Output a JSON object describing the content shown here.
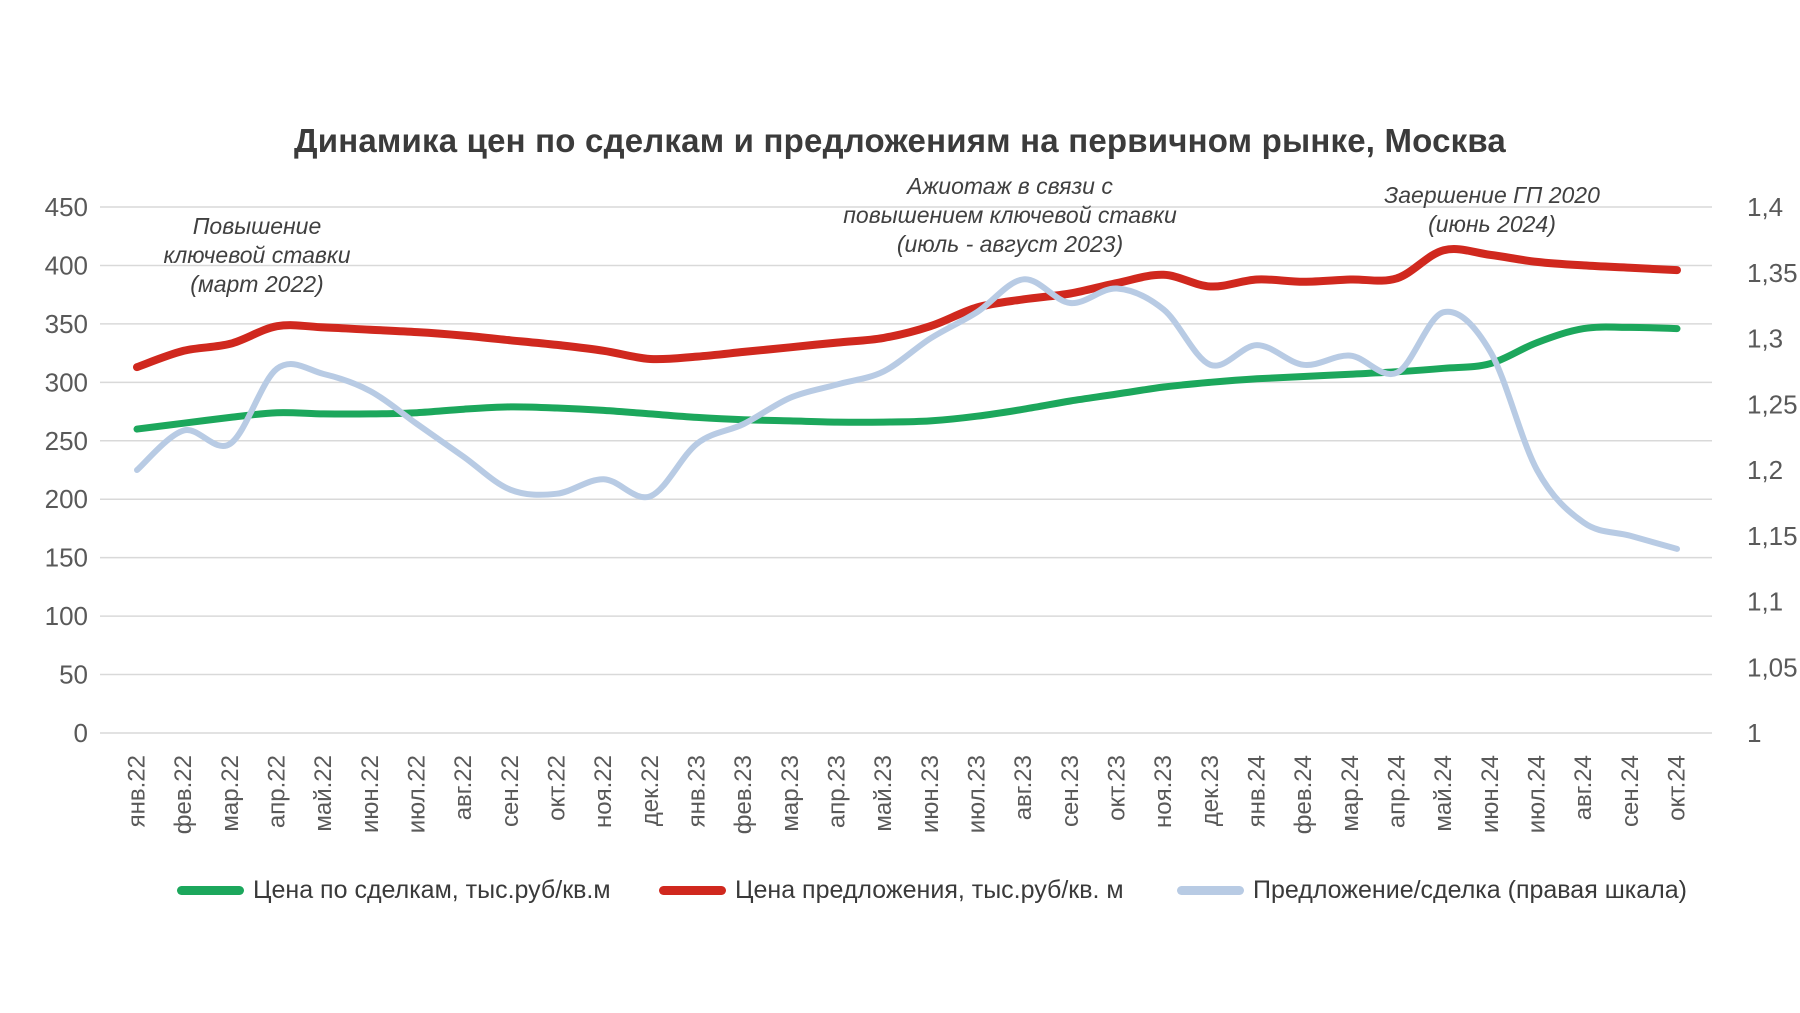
{
  "title": "Динамика цен по сделкам и предложениям на первичном рынке, Москва",
  "annotations": [
    {
      "lines": [
        "Повышение",
        "ключевой ставки",
        "(март 2022)"
      ]
    },
    {
      "lines": [
        "Ажиотаж в связи с",
        "повышением ключевой ставки",
        "(июль - август 2023)"
      ]
    },
    {
      "lines": [
        "Заершение ГП 2020",
        "(июнь 2024)"
      ]
    }
  ],
  "colors": {
    "deals_line": "#1ca75c",
    "offer_line": "#d0281e",
    "ratio_line": "#b8cbe4",
    "gridline": "#d9d9d9",
    "axis_text": "#595959",
    "title_text": "#3b3b3b"
  },
  "chart_data": {
    "type": "line",
    "title": "Динамика цен по сделкам и предложениям на первичном рынке, Москва",
    "grid": true,
    "legend_position": "bottom",
    "categories": [
      "янв.22",
      "фев.22",
      "мар.22",
      "апр.22",
      "май.22",
      "июн.22",
      "июл.22",
      "авг.22",
      "сен.22",
      "окт.22",
      "ноя.22",
      "дек.22",
      "янв.23",
      "фев.23",
      "мар.23",
      "апр.23",
      "май.23",
      "июн.23",
      "июл.23",
      "авг.23",
      "сен.23",
      "окт.23",
      "ноя.23",
      "дек.23",
      "янв.24",
      "фев.24",
      "мар.24",
      "апр.24",
      "май.24",
      "июн.24",
      "июл.24",
      "авг.24",
      "сен.24",
      "окт.24"
    ],
    "left_axis": {
      "min": 0,
      "max": 450,
      "step": 50,
      "labels": [
        "0",
        "50",
        "100",
        "150",
        "200",
        "250",
        "300",
        "350",
        "400",
        "450"
      ]
    },
    "right_axis": {
      "min": 1,
      "max": 1.4,
      "step": 0.05,
      "labels": [
        "1",
        "1,05",
        "1,1",
        "1,15",
        "1,2",
        "1,25",
        "1,3",
        "1,35",
        "1,4"
      ]
    },
    "series": [
      {
        "name": "Цена по сделкам, тыс.руб/кв.м",
        "axis": "left",
        "color": "#1ca75c",
        "width": 7,
        "values": [
          260,
          265,
          270,
          274,
          273,
          273,
          274,
          277,
          279,
          278,
          276,
          273,
          270,
          268,
          267,
          266,
          266,
          267,
          271,
          277,
          284,
          290,
          296,
          300,
          303,
          305,
          307,
          309,
          312,
          316,
          334,
          346,
          347,
          346
        ]
      },
      {
        "name": "Цена предложения, тыс.руб/кв. м",
        "axis": "left",
        "color": "#d0281e",
        "width": 8,
        "values": [
          313,
          327,
          333,
          348,
          347,
          345,
          343,
          340,
          336,
          332,
          327,
          320,
          322,
          326,
          330,
          334,
          338,
          348,
          364,
          371,
          376,
          385,
          392,
          382,
          388,
          386,
          388,
          389,
          413,
          409,
          403,
          400,
          398,
          396
        ]
      },
      {
        "name": "Предложение/сделка (правая шкала)",
        "axis": "right",
        "color": "#b8cbe4",
        "width": 6,
        "values": [
          1.2,
          1.23,
          1.22,
          1.277,
          1.273,
          1.26,
          1.235,
          1.21,
          1.185,
          1.182,
          1.193,
          1.18,
          1.22,
          1.235,
          1.255,
          1.265,
          1.275,
          1.3,
          1.32,
          1.345,
          1.327,
          1.338,
          1.322,
          1.28,
          1.295,
          1.28,
          1.287,
          1.274,
          1.32,
          1.29,
          1.2,
          1.16,
          1.15,
          1.14
        ]
      }
    ]
  }
}
